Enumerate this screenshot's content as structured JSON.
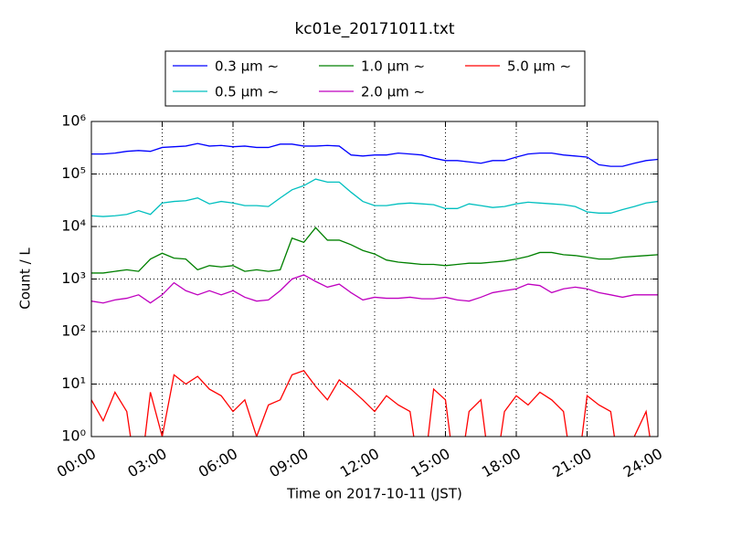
{
  "chart_data": {
    "type": "line",
    "title": "kc01e_20171011.txt",
    "x_label": "Time on 2017-10-11 (JST)",
    "y_label": "Count / L",
    "log_y": true,
    "grid": true,
    "legend": "upper center",
    "xlim": [
      0,
      24
    ],
    "xticks": [
      {
        "value": 0,
        "label": "00:00"
      },
      {
        "value": 3,
        "label": "03:00"
      },
      {
        "value": 6,
        "label": "06:00"
      },
      {
        "value": 9,
        "label": "09:00"
      },
      {
        "value": 12,
        "label": "12:00"
      },
      {
        "value": 15,
        "label": "15:00"
      },
      {
        "value": 18,
        "label": "18:00"
      },
      {
        "value": 21,
        "label": "21:00"
      },
      {
        "value": 24,
        "label": "24:00"
      }
    ],
    "ylim": [
      1,
      1000000
    ],
    "yticks": [
      {
        "value": 1,
        "label": "10⁰"
      },
      {
        "value": 10,
        "label": "10¹"
      },
      {
        "value": 100,
        "label": "10²"
      },
      {
        "value": 1000,
        "label": "10³"
      },
      {
        "value": 10000,
        "label": "10⁴"
      },
      {
        "value": 100000,
        "label": "10⁵"
      },
      {
        "value": 1000000,
        "label": "10⁶"
      }
    ],
    "x": [
      0,
      0.5,
      1,
      1.5,
      2,
      2.5,
      3,
      3.5,
      4,
      4.5,
      5,
      5.5,
      6,
      6.5,
      7,
      7.5,
      8,
      8.5,
      9,
      9.5,
      10,
      10.5,
      11,
      11.5,
      12,
      12.5,
      13,
      13.5,
      14,
      14.5,
      15,
      15.5,
      16,
      16.5,
      17,
      17.5,
      18,
      18.5,
      19,
      19.5,
      20,
      20.5,
      21,
      21.5,
      22,
      22.5,
      23,
      23.5,
      24
    ],
    "series": [
      {
        "name": "0.3 μm ∼",
        "color": "#0000ff",
        "values": [
          240000,
          240000,
          250000,
          270000,
          280000,
          270000,
          320000,
          330000,
          340000,
          380000,
          340000,
          350000,
          330000,
          340000,
          320000,
          320000,
          370000,
          370000,
          340000,
          340000,
          350000,
          340000,
          230000,
          220000,
          230000,
          230000,
          250000,
          240000,
          230000,
          200000,
          180000,
          180000,
          170000,
          160000,
          180000,
          180000,
          210000,
          240000,
          250000,
          250000,
          230000,
          220000,
          210000,
          150000,
          140000,
          140000,
          160000,
          180000,
          190000
        ]
      },
      {
        "name": "0.5 μm ∼",
        "color": "#00bfbf",
        "values": [
          16000,
          15500,
          16000,
          17000,
          20000,
          17000,
          28000,
          30000,
          31000,
          35000,
          27000,
          30000,
          28000,
          25000,
          25000,
          24000,
          35000,
          50000,
          60000,
          80000,
          70000,
          70000,
          45000,
          30000,
          25000,
          25000,
          27000,
          28000,
          27000,
          26000,
          22000,
          22000,
          27000,
          25000,
          23000,
          24000,
          27000,
          29000,
          28000,
          27000,
          26000,
          24000,
          19000,
          18000,
          18000,
          21000,
          24000,
          28000,
          30000
        ]
      },
      {
        "name": "1.0 μm ∼",
        "color": "#008000",
        "values": [
          1300,
          1300,
          1400,
          1500,
          1400,
          2400,
          3100,
          2500,
          2400,
          1500,
          1800,
          1700,
          1800,
          1400,
          1500,
          1400,
          1500,
          6000,
          5000,
          9500,
          5500,
          5500,
          4500,
          3500,
          3000,
          2300,
          2100,
          2000,
          1900,
          1900,
          1800,
          1900,
          2000,
          2000,
          2100,
          2200,
          2400,
          2700,
          3200,
          3200,
          2900,
          2800,
          2600,
          2400,
          2400,
          2600,
          2700,
          2800,
          2900
        ]
      },
      {
        "name": "2.0 μm ∼",
        "color": "#bf00bf",
        "values": [
          380,
          350,
          400,
          430,
          500,
          350,
          500,
          850,
          600,
          500,
          600,
          500,
          600,
          450,
          380,
          400,
          600,
          1000,
          1200,
          900,
          700,
          800,
          550,
          400,
          450,
          430,
          430,
          450,
          420,
          420,
          450,
          400,
          380,
          450,
          550,
          600,
          650,
          800,
          750,
          550,
          650,
          700,
          650,
          550,
          500,
          450,
          500,
          500,
          500
        ]
      },
      {
        "name": "5.0 μm ∼",
        "color": "#ff0000",
        "values": [
          5,
          2,
          7,
          3,
          0,
          7,
          1,
          15,
          10,
          14,
          8,
          6,
          3,
          5,
          1,
          4,
          5,
          15,
          18,
          9,
          5,
          12,
          8,
          5,
          3,
          6,
          4,
          3,
          0,
          8,
          5,
          0,
          3,
          5,
          0,
          3,
          6,
          4,
          7,
          5,
          3,
          0,
          6,
          4,
          3,
          0,
          1,
          3,
          0
        ]
      }
    ]
  }
}
